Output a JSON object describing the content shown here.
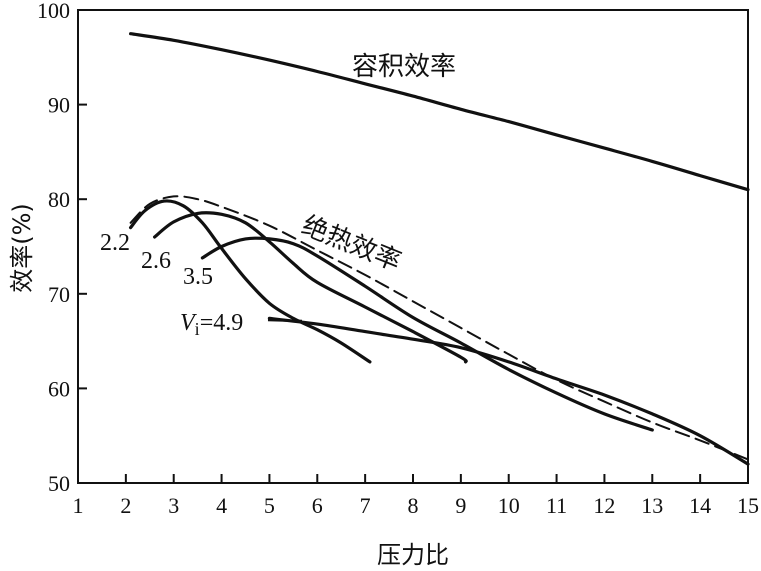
{
  "chart_data": {
    "type": "line",
    "xlabel": "压力比",
    "ylabel": "效率(%)",
    "xlim": [
      1,
      15
    ],
    "ylim": [
      50,
      100
    ],
    "xticks": [
      "1",
      "2",
      "3",
      "4",
      "5",
      "6",
      "7",
      "8",
      "9",
      "10",
      "11",
      "12",
      "13",
      "14",
      "15"
    ],
    "yticks": [
      "50",
      "60",
      "70",
      "80",
      "90",
      "100"
    ],
    "grid": false,
    "series": [
      {
        "name": "容积效率",
        "style": "solid",
        "x": [
          2.1,
          3,
          4,
          5,
          6,
          7,
          8,
          9,
          10,
          11,
          12,
          13,
          14,
          15
        ],
        "y": [
          97.5,
          96.8,
          95.8,
          94.7,
          93.5,
          92.2,
          90.9,
          89.5,
          88.2,
          86.8,
          85.4,
          84.0,
          82.5,
          81.0
        ]
      },
      {
        "name": "绝热效率",
        "style": "dashed",
        "x": [
          2.1,
          2.5,
          3,
          3.5,
          4,
          5,
          6,
          7,
          8,
          9,
          10,
          11,
          12,
          13,
          14,
          15
        ],
        "y": [
          77.5,
          79.5,
          80.3,
          80.0,
          79.2,
          77.2,
          74.6,
          72.0,
          69.2,
          66.4,
          63.6,
          60.9,
          58.6,
          56.4,
          54.5,
          52.5
        ]
      },
      {
        "name": "2.2",
        "style": "solid",
        "x": [
          2.1,
          2.4,
          2.8,
          3.2,
          3.6,
          4.0,
          4.5,
          5.0,
          5.5,
          6.0,
          6.5,
          7.1
        ],
        "y": [
          77.0,
          78.8,
          79.8,
          79.3,
          77.5,
          74.8,
          71.6,
          69.0,
          67.4,
          66.2,
          64.8,
          62.8
        ]
      },
      {
        "name": "2.6",
        "style": "solid",
        "x": [
          2.6,
          3.0,
          3.5,
          4.0,
          4.5,
          5.0,
          5.5,
          6.0,
          7.0,
          8.0,
          9.0,
          9.1
        ],
        "y": [
          76.0,
          77.6,
          78.5,
          78.4,
          77.5,
          75.5,
          73.2,
          71.2,
          68.6,
          66.0,
          63.3,
          62.8
        ]
      },
      {
        "name": "3.5",
        "style": "solid",
        "x": [
          3.6,
          4.0,
          4.5,
          5.0,
          5.5,
          6.0,
          7.0,
          8.0,
          9.0,
          10.0,
          11.0,
          12.0,
          13.0
        ],
        "y": [
          73.8,
          75.0,
          75.8,
          75.8,
          75.3,
          74.0,
          70.8,
          67.5,
          64.8,
          62.0,
          59.5,
          57.3,
          55.6
        ]
      },
      {
        "name": "Vi=4.9",
        "style": "solid",
        "x": [
          5.0,
          6.0,
          7.0,
          8.0,
          9.0,
          10.0,
          11.0,
          12.0,
          13.0,
          14.0,
          15.0
        ],
        "y": [
          67.4,
          66.8,
          66.0,
          65.2,
          64.3,
          62.8,
          61.0,
          59.3,
          57.3,
          55.0,
          52.0
        ]
      }
    ],
    "annotations": [
      {
        "text": "容积效率",
        "target": "容积效率"
      },
      {
        "text": "绝热效率",
        "target": "绝热效率"
      },
      {
        "text": "2.2",
        "target": "2.2"
      },
      {
        "text": "2.6",
        "target": "2.6"
      },
      {
        "text": "3.5",
        "target": "3.5"
      },
      {
        "text_prefix": "V",
        "text_sub": "i",
        "text_suffix": "=4.9",
        "target": "Vi=4.9"
      }
    ]
  }
}
